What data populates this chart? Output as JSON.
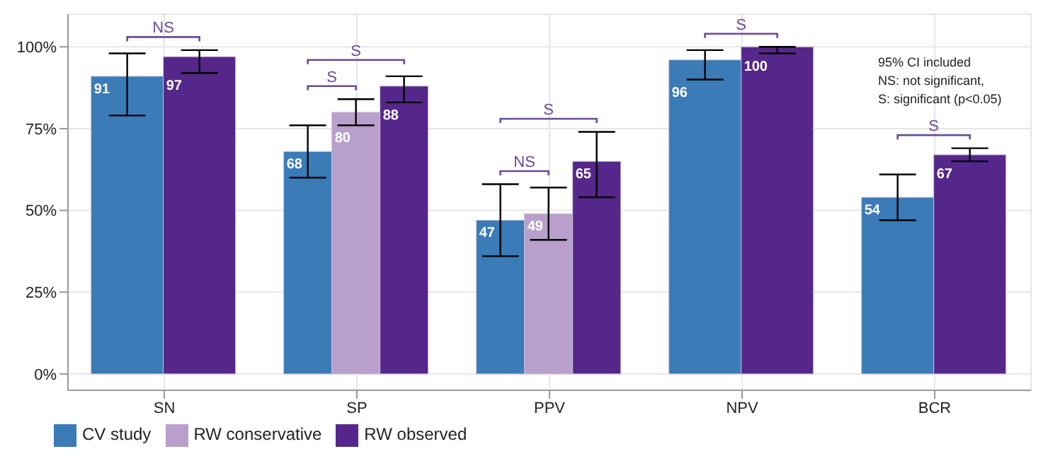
{
  "chart_data": {
    "type": "bar",
    "categories": [
      "SN",
      "SP",
      "PPV",
      "NPV",
      "BCR"
    ],
    "series": [
      {
        "name": "CV study",
        "color": "#3a7bb8",
        "values": [
          91,
          68,
          47,
          96,
          54
        ],
        "errors": [
          [
            79,
            98
          ],
          [
            60,
            76
          ],
          [
            36,
            58
          ],
          [
            90,
            99
          ],
          [
            47,
            61
          ]
        ]
      },
      {
        "name": "RW conservative",
        "color": "#b99fcb",
        "values": [
          null,
          80,
          49,
          null,
          null
        ],
        "errors": [
          null,
          [
            76,
            84
          ],
          [
            41,
            57
          ],
          null,
          null
        ]
      },
      {
        "name": "RW observed",
        "color": "#56278a",
        "values": [
          97,
          88,
          65,
          100,
          67
        ],
        "errors": [
          [
            92,
            99
          ],
          [
            83,
            91
          ],
          [
            54,
            74
          ],
          [
            98,
            100
          ],
          [
            65,
            69
          ]
        ]
      }
    ],
    "ylim": [
      -5,
      110
    ],
    "yticks": [
      {
        "value": 0,
        "label": "0%"
      },
      {
        "value": 25,
        "label": "25%"
      },
      {
        "value": 50,
        "label": "50%"
      },
      {
        "value": 75,
        "label": "75%"
      },
      {
        "value": 100,
        "label": "100%"
      }
    ],
    "data_labels": true,
    "grid": true,
    "legend": "bottom left",
    "annotations": [
      "NS",
      "S",
      "S",
      "S",
      "NS",
      "S",
      "S",
      "95% CI included",
      "NS: not significant,",
      "S: significant (p<0.05)"
    ]
  }
}
